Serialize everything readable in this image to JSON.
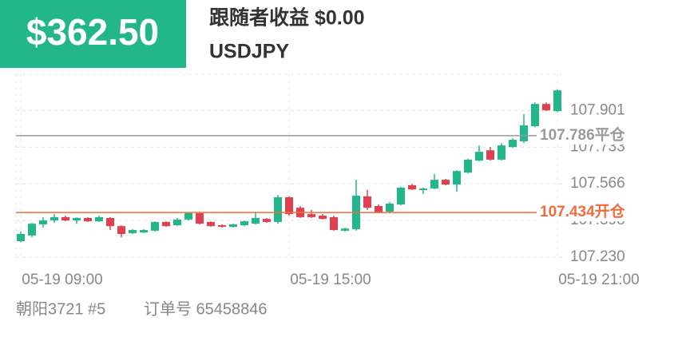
{
  "header": {
    "amount": "$362.50",
    "title": "跟随者收益 $0.00",
    "symbol": "USDJPY"
  },
  "chart_data": {
    "type": "candlestick",
    "categories": [
      "05-19 09:00",
      null,
      null,
      null,
      null,
      null,
      null,
      null,
      null,
      null,
      null,
      null,
      null,
      null,
      null,
      null,
      null,
      null,
      null,
      null,
      null,
      null,
      null,
      null,
      "05-19 15:00",
      null,
      null,
      null,
      null,
      null,
      null,
      null,
      null,
      null,
      null,
      null,
      null,
      null,
      null,
      null,
      null,
      null,
      null,
      null,
      null,
      null,
      null,
      null,
      "05-19 21:00"
    ],
    "open": [
      107.303,
      107.329,
      107.38,
      107.398,
      107.413,
      107.398,
      107.409,
      107.394,
      107.409,
      107.372,
      107.34,
      107.343,
      107.351,
      107.391,
      107.376,
      107.402,
      107.431,
      107.391,
      107.376,
      107.369,
      107.376,
      107.383,
      107.405,
      107.391,
      107.504,
      107.456,
      107.427,
      107.42,
      107.413,
      107.351,
      107.358,
      107.508,
      107.464,
      107.438,
      107.471,
      107.559,
      107.537,
      107.544,
      107.584,
      107.562,
      107.617,
      107.672,
      107.719,
      107.676,
      107.734,
      107.76,
      107.829,
      107.931,
      107.898
    ],
    "high": [
      107.347,
      107.387,
      107.413,
      107.427,
      107.42,
      107.413,
      107.413,
      107.42,
      107.413,
      107.376,
      107.358,
      107.358,
      107.394,
      107.394,
      107.409,
      107.435,
      107.435,
      107.394,
      107.38,
      107.383,
      107.398,
      107.435,
      107.409,
      107.515,
      107.508,
      107.464,
      107.446,
      107.427,
      107.42,
      107.365,
      107.584,
      107.537,
      107.471,
      107.482,
      107.552,
      107.566,
      107.548,
      107.61,
      107.588,
      107.628,
      107.68,
      107.741,
      107.734,
      107.752,
      107.774,
      107.884,
      107.938,
      107.938,
      107.997
    ],
    "low": [
      107.299,
      107.321,
      107.365,
      107.387,
      107.394,
      107.383,
      107.391,
      107.391,
      107.354,
      107.321,
      107.336,
      107.34,
      107.347,
      107.369,
      107.372,
      107.398,
      107.38,
      107.369,
      107.365,
      107.365,
      107.372,
      107.38,
      107.387,
      107.383,
      107.42,
      107.409,
      107.409,
      107.402,
      107.351,
      107.347,
      107.351,
      107.446,
      107.431,
      107.431,
      107.467,
      107.537,
      107.519,
      107.54,
      107.559,
      107.53,
      107.613,
      107.668,
      107.672,
      107.672,
      107.73,
      107.752,
      107.825,
      107.898,
      107.894
    ],
    "close": [
      107.336,
      107.383,
      107.398,
      107.413,
      107.398,
      107.409,
      107.394,
      107.413,
      107.372,
      107.336,
      107.354,
      107.354,
      107.391,
      107.372,
      107.402,
      107.431,
      107.383,
      107.372,
      107.369,
      107.38,
      107.394,
      107.409,
      107.391,
      107.504,
      107.427,
      107.413,
      107.413,
      107.405,
      107.354,
      107.361,
      107.511,
      107.456,
      107.435,
      107.475,
      107.548,
      107.54,
      107.544,
      107.584,
      107.562,
      107.624,
      107.676,
      107.712,
      107.676,
      107.741,
      107.767,
      107.833,
      107.931,
      107.902,
      107.993
    ],
    "up_color": "#22b78a",
    "down_color": "#e2404f",
    "ylim": [
      107.23,
      108.085
    ],
    "yticks": [
      {
        "value": 107.23,
        "label": "107.230"
      },
      107.398,
      107.566,
      107.733,
      107.901
    ],
    "grid": true,
    "price_lines": [
      {
        "value": 107.786,
        "label": "107.786平仓",
        "color": "#9a9a9a"
      },
      {
        "value": 107.434,
        "label": "107.434开仓",
        "color": "#f26b3a"
      }
    ]
  },
  "footer": {
    "account": "朝阳3721 #5",
    "order": "订单号 65458846"
  }
}
